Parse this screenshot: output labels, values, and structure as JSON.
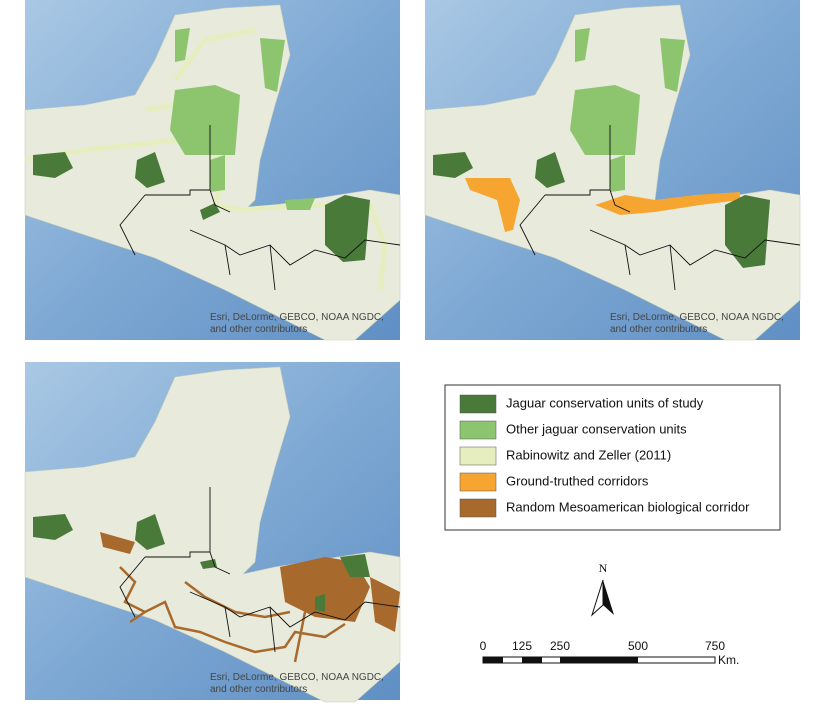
{
  "panels": [
    {
      "attribution": [
        "Esri, DeLorme, GEBCO, NOAA NGDC,",
        "and other contributors"
      ]
    },
    {
      "attribution": [
        "Esri, DeLorme, GEBCO, NOAA NGDC,",
        "and other contributors"
      ]
    },
    {
      "attribution": [
        "Esri, DeLorme, GEBCO, NOAA NGDC,",
        "and other contributors"
      ]
    }
  ],
  "legend": [
    {
      "label": "Jaguar conservation units of study",
      "color": "#4a7a3a"
    },
    {
      "label": "Other jaguar conservation units",
      "color": "#8cc56e"
    },
    {
      "label": "Rabinowitz and Zeller (2011)",
      "color": "#e6eec0"
    },
    {
      "label": "Ground-truthed corridors",
      "color": "#f7a531"
    },
    {
      "label": "Random Mesoamerican biological corridor",
      "color": "#a86a2c"
    }
  ],
  "north_arrow": "N",
  "scale_bar": {
    "labels": [
      "0",
      "125",
      "250",
      "500",
      "750"
    ],
    "unit": "Km."
  }
}
